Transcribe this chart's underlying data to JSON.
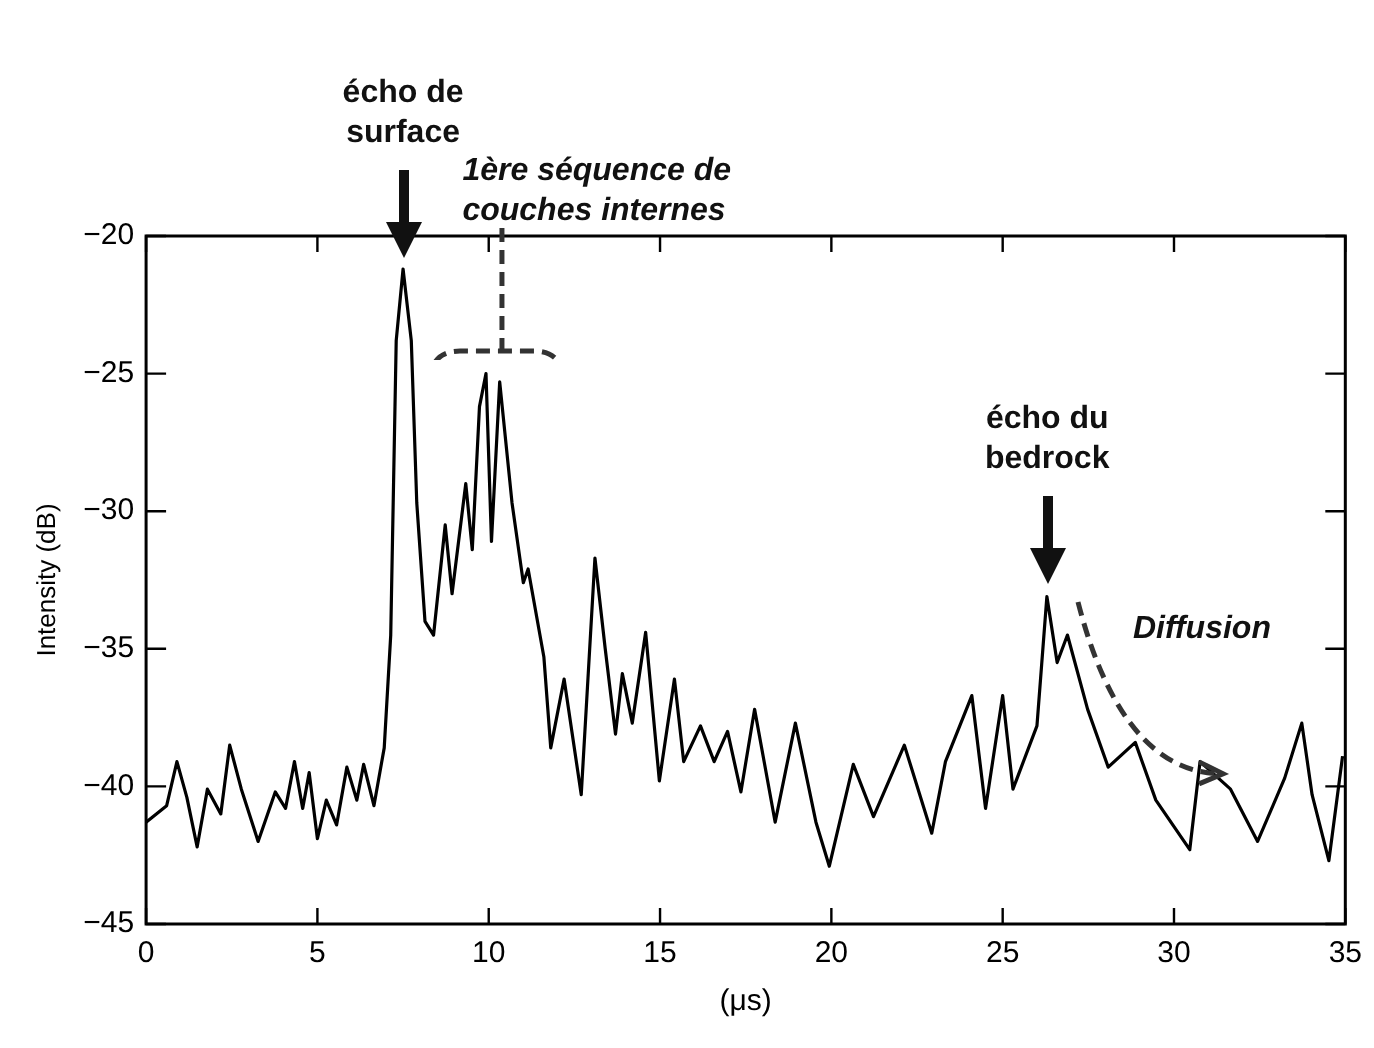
{
  "chart_data": {
    "type": "line",
    "xlabel": "(μs)",
    "ylabel": "Intensity (dB)",
    "xlim": [
      0,
      35
    ],
    "xticks": [
      0,
      5,
      10,
      15,
      20,
      25,
      30,
      35
    ],
    "ylim": [
      -45,
      -20
    ],
    "yticks": [
      -45,
      -40,
      -35,
      -30,
      -25,
      -20
    ],
    "grid": false,
    "legend": false,
    "marker": "none",
    "line_style": "solid",
    "annotations": [
      "écho de surface",
      "1ère séquence de couches internes",
      "écho du bedrock",
      "Diffusion"
    ],
    "series": [
      {
        "color": "#000000",
        "x": [
          0,
          0.6,
          0.9,
          1.19,
          1.49,
          1.79,
          2.18,
          2.44,
          2.78,
          3.27,
          3.77,
          4.07,
          4.33,
          4.57,
          4.76,
          5.0,
          5.26,
          5.56,
          5.86,
          6.15,
          6.35,
          6.65,
          6.95,
          7.14,
          7.3,
          7.5,
          7.74,
          7.9,
          8.14,
          8.39,
          8.73,
          8.93,
          9.33,
          9.52,
          9.73,
          9.92,
          10.08,
          10.32,
          10.68,
          11.01,
          11.15,
          11.61,
          11.81,
          12.2,
          12.7,
          13.1,
          13.4,
          13.7,
          13.9,
          14.19,
          14.58,
          14.98,
          15.42,
          15.69,
          16.18,
          16.58,
          16.97,
          17.36,
          17.76,
          18.36,
          18.95,
          19.55,
          19.94,
          20.64,
          21.23,
          22.13,
          22.93,
          23.33,
          24.1,
          24.5,
          25.0,
          25.3,
          26.0,
          26.29,
          26.59,
          26.89,
          27.48,
          28.08,
          28.87,
          29.47,
          30.46,
          30.76,
          31.65,
          32.44,
          33.23,
          33.73,
          34.03,
          34.52,
          34.92
        ],
        "values": [
          -41.3,
          -40.7,
          -39.1,
          -40.4,
          -42.2,
          -40.1,
          -41.0,
          -38.5,
          -40.1,
          -42.0,
          -40.2,
          -40.8,
          -39.1,
          -40.8,
          -39.5,
          -41.9,
          -40.5,
          -41.4,
          -39.3,
          -40.5,
          -39.2,
          -40.7,
          -38.6,
          -34.5,
          -23.8,
          -21.2,
          -23.8,
          -29.7,
          -34.0,
          -34.5,
          -30.5,
          -33.0,
          -29.0,
          -31.4,
          -26.2,
          -25.0,
          -31.1,
          -25.3,
          -29.7,
          -32.6,
          -32.1,
          -35.3,
          -38.6,
          -36.1,
          -40.3,
          -31.7,
          -35.0,
          -38.1,
          -35.9,
          -37.7,
          -34.4,
          -39.8,
          -36.1,
          -39.1,
          -37.8,
          -39.1,
          -38.0,
          -40.2,
          -37.2,
          -41.3,
          -37.7,
          -41.3,
          -42.9,
          -39.2,
          -41.1,
          -38.5,
          -41.7,
          -39.1,
          -36.7,
          -40.8,
          -36.7,
          -40.1,
          -37.8,
          -33.1,
          -35.5,
          -34.5,
          -37.2,
          -39.3,
          -38.4,
          -40.5,
          -42.3,
          -39.1,
          -40.1,
          -42.0,
          -39.7,
          -37.7,
          -40.3,
          -42.7,
          -38.9
        ]
      }
    ]
  }
}
